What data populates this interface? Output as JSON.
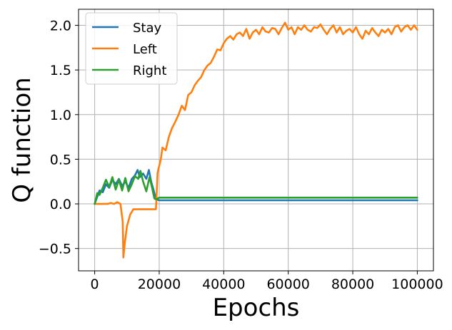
{
  "chart_data": {
    "type": "line",
    "xlabel": "Epochs",
    "ylabel": "Q function",
    "xlim": [
      -5000,
      105000
    ],
    "ylim": [
      -0.75,
      2.18
    ],
    "xticks": [
      0,
      20000,
      40000,
      60000,
      80000,
      100000
    ],
    "xtick_labels": [
      "0",
      "20000",
      "40000",
      "60000",
      "80000",
      "100000"
    ],
    "yticks": [
      -0.5,
      0.0,
      0.5,
      1.0,
      1.5,
      2.0
    ],
    "ytick_labels": [
      "−0.5",
      "0.0",
      "0.5",
      "1.0",
      "1.5",
      "2.0"
    ],
    "grid": true,
    "legend_position": "top-left",
    "series": [
      {
        "name": "Stay",
        "color": "#1f77b4",
        "x": [
          0,
          800,
          1500,
          2500,
          3500,
          4500,
          5500,
          6500,
          7500,
          8500,
          9500,
          10500,
          11500,
          12500,
          13300,
          14000,
          15000,
          16000,
          16800,
          17500,
          18300,
          19000,
          20000,
          30000,
          40000,
          50000,
          60000,
          70000,
          80000,
          90000,
          100000
        ],
        "y": [
          0.0,
          0.08,
          0.15,
          0.13,
          0.22,
          0.18,
          0.27,
          0.22,
          0.28,
          0.2,
          0.25,
          0.18,
          0.28,
          0.32,
          0.38,
          0.3,
          0.34,
          0.28,
          0.38,
          0.25,
          0.15,
          0.05,
          0.04,
          0.04,
          0.04,
          0.04,
          0.04,
          0.04,
          0.04,
          0.04,
          0.04
        ]
      },
      {
        "name": "Left",
        "color": "#ff7f0e",
        "x": [
          0,
          1000,
          2000,
          4000,
          5000,
          6000,
          7000,
          8000,
          8700,
          8900,
          9300,
          10000,
          11000,
          12000,
          14000,
          16000,
          18000,
          19000,
          19500,
          20500,
          21000,
          22000,
          23000,
          24000,
          25000,
          26000,
          27000,
          28000,
          29000,
          30000,
          31000,
          32000,
          33000,
          34000,
          35000,
          36000,
          37000,
          38000,
          39000,
          40000,
          41000,
          42000,
          43000,
          44000,
          45000,
          46000,
          47000,
          48000,
          49000,
          50000,
          51000,
          52000,
          53000,
          54000,
          55000,
          56000,
          57000,
          58000,
          59000,
          60000,
          61000,
          62000,
          63000,
          64000,
          65000,
          66000,
          67000,
          68000,
          69000,
          70000,
          71000,
          72000,
          73000,
          74000,
          75000,
          76000,
          77000,
          78000,
          79000,
          80000,
          81000,
          82000,
          83000,
          84000,
          85000,
          86000,
          87000,
          88000,
          89000,
          90000,
          91000,
          92000,
          93000,
          94000,
          95000,
          96000,
          97000,
          98000,
          99000,
          100000
        ],
        "y": [
          0.0,
          0.0,
          0.0,
          0.0,
          0.01,
          0.0,
          0.02,
          0.0,
          -0.2,
          -0.6,
          -0.45,
          -0.25,
          -0.12,
          -0.06,
          -0.06,
          -0.06,
          -0.06,
          -0.06,
          0.35,
          0.5,
          0.63,
          0.6,
          0.75,
          0.85,
          0.92,
          1.0,
          1.1,
          1.05,
          1.22,
          1.25,
          1.33,
          1.38,
          1.42,
          1.5,
          1.55,
          1.58,
          1.65,
          1.73,
          1.72,
          1.8,
          1.85,
          1.88,
          1.84,
          1.9,
          1.92,
          1.88,
          1.96,
          1.85,
          1.92,
          1.95,
          1.9,
          1.98,
          1.93,
          1.92,
          1.97,
          1.96,
          1.9,
          1.97,
          2.03,
          1.95,
          1.98,
          1.9,
          1.98,
          1.95,
          2.0,
          1.95,
          1.93,
          1.98,
          1.97,
          2.01,
          1.95,
          1.9,
          1.96,
          2.0,
          1.92,
          1.98,
          1.9,
          1.94,
          1.96,
          1.92,
          1.98,
          1.9,
          1.85,
          1.94,
          1.9,
          1.97,
          1.92,
          1.88,
          1.95,
          1.92,
          1.96,
          1.9,
          1.98,
          2.0,
          1.93,
          1.98,
          2.0,
          1.95,
          2.0,
          1.95
        ]
      },
      {
        "name": "Right",
        "color": "#2ca02c",
        "x": [
          0,
          800,
          1500,
          2500,
          3500,
          4500,
          5500,
          6500,
          7500,
          8500,
          9500,
          10500,
          11500,
          12500,
          13500,
          14200,
          15000,
          16000,
          17000,
          17800,
          18500,
          19000,
          20000,
          30000,
          40000,
          50000,
          60000,
          70000,
          80000,
          90000,
          100000
        ],
        "y": [
          0.0,
          0.12,
          0.1,
          0.18,
          0.27,
          0.19,
          0.3,
          0.16,
          0.27,
          0.15,
          0.29,
          0.14,
          0.22,
          0.31,
          0.28,
          0.37,
          0.25,
          0.14,
          0.3,
          0.18,
          0.06,
          0.05,
          0.07,
          0.07,
          0.07,
          0.07,
          0.07,
          0.07,
          0.07,
          0.07,
          0.07
        ]
      }
    ]
  }
}
